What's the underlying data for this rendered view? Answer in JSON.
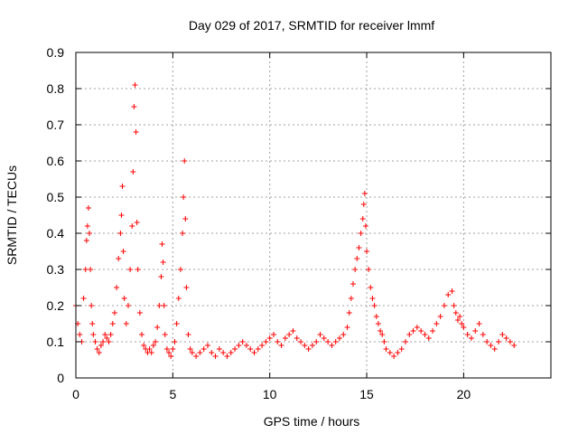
{
  "chart_data": {
    "type": "scatter",
    "title": "Day 029 of 2017, SRMTID for receiver lmmf",
    "xlabel": "GPS time / hours",
    "ylabel": "SRMTID / TECUs",
    "xlim": [
      0,
      24.5
    ],
    "ylim": [
      0,
      0.9
    ],
    "xticks": [
      0,
      5,
      10,
      15,
      20
    ],
    "xtick_labels": [
      "0",
      "5",
      "10",
      "15",
      "20"
    ],
    "yticks": [
      0,
      0.1,
      0.2,
      0.3,
      0.4,
      0.5,
      0.6,
      0.7,
      0.8,
      0.9
    ],
    "ytick_labels": [
      "0",
      "0.1",
      "0.2",
      "0.3",
      "0.4",
      "0.5",
      "0.6",
      "0.7",
      "0.8",
      "0.9"
    ],
    "grid": true,
    "marker": "plus",
    "color": "#ff0000",
    "series": [
      {
        "name": "SRMTID",
        "x": [
          0.0,
          0.1,
          0.2,
          0.3,
          0.4,
          0.5,
          0.55,
          0.6,
          0.65,
          0.7,
          0.75,
          0.8,
          0.85,
          0.9,
          1.0,
          1.1,
          1.2,
          1.3,
          1.4,
          1.5,
          1.6,
          1.7,
          1.8,
          1.9,
          2.0,
          2.1,
          2.2,
          2.3,
          2.35,
          2.4,
          2.45,
          2.5,
          2.6,
          2.7,
          2.8,
          2.9,
          2.95,
          3.0,
          3.05,
          3.1,
          3.15,
          3.2,
          3.3,
          3.4,
          3.5,
          3.6,
          3.7,
          3.8,
          3.9,
          4.0,
          4.1,
          4.2,
          4.3,
          4.4,
          4.45,
          4.5,
          4.55,
          4.6,
          4.7,
          4.8,
          4.9,
          5.0,
          5.1,
          5.2,
          5.3,
          5.4,
          5.5,
          5.55,
          5.6,
          5.65,
          5.7,
          5.8,
          5.9,
          6.0,
          6.2,
          6.4,
          6.6,
          6.8,
          7.0,
          7.2,
          7.4,
          7.6,
          7.8,
          8.0,
          8.2,
          8.4,
          8.6,
          8.8,
          9.0,
          9.2,
          9.4,
          9.6,
          9.8,
          10.0,
          10.2,
          10.4,
          10.6,
          10.8,
          11.0,
          11.2,
          11.4,
          11.6,
          11.8,
          12.0,
          12.2,
          12.4,
          12.6,
          12.8,
          13.0,
          13.2,
          13.4,
          13.6,
          13.8,
          14.0,
          14.1,
          14.2,
          14.3,
          14.4,
          14.5,
          14.6,
          14.7,
          14.8,
          14.85,
          14.9,
          14.95,
          15.0,
          15.1,
          15.2,
          15.3,
          15.4,
          15.5,
          15.6,
          15.7,
          15.8,
          15.9,
          16.0,
          16.2,
          16.4,
          16.6,
          16.8,
          17.0,
          17.2,
          17.4,
          17.6,
          17.8,
          18.0,
          18.2,
          18.4,
          18.6,
          18.8,
          19.0,
          19.2,
          19.4,
          19.5,
          19.6,
          19.7,
          19.8,
          19.9,
          20.0,
          20.2,
          20.4,
          20.6,
          20.8,
          21.0,
          21.2,
          21.4,
          21.6,
          21.8,
          22.0,
          22.2,
          22.4,
          22.6
        ],
        "y": [
          0.2,
          0.15,
          0.12,
          0.1,
          0.22,
          0.3,
          0.38,
          0.42,
          0.47,
          0.4,
          0.3,
          0.2,
          0.15,
          0.12,
          0.1,
          0.08,
          0.07,
          0.09,
          0.1,
          0.12,
          0.11,
          0.1,
          0.12,
          0.15,
          0.18,
          0.25,
          0.33,
          0.4,
          0.45,
          0.53,
          0.35,
          0.22,
          0.15,
          0.2,
          0.3,
          0.42,
          0.57,
          0.75,
          0.81,
          0.68,
          0.43,
          0.3,
          0.18,
          0.12,
          0.09,
          0.08,
          0.07,
          0.08,
          0.07,
          0.09,
          0.1,
          0.14,
          0.2,
          0.28,
          0.37,
          0.32,
          0.2,
          0.12,
          0.08,
          0.07,
          0.06,
          0.08,
          0.1,
          0.15,
          0.22,
          0.3,
          0.4,
          0.5,
          0.6,
          0.44,
          0.25,
          0.12,
          0.08,
          0.07,
          0.06,
          0.07,
          0.08,
          0.09,
          0.07,
          0.06,
          0.08,
          0.07,
          0.06,
          0.07,
          0.08,
          0.09,
          0.1,
          0.09,
          0.08,
          0.07,
          0.08,
          0.09,
          0.1,
          0.11,
          0.12,
          0.1,
          0.09,
          0.11,
          0.12,
          0.13,
          0.11,
          0.1,
          0.09,
          0.08,
          0.09,
          0.1,
          0.12,
          0.11,
          0.1,
          0.09,
          0.1,
          0.11,
          0.12,
          0.14,
          0.18,
          0.22,
          0.26,
          0.3,
          0.33,
          0.36,
          0.4,
          0.44,
          0.48,
          0.51,
          0.42,
          0.35,
          0.3,
          0.25,
          0.22,
          0.2,
          0.17,
          0.15,
          0.13,
          0.12,
          0.1,
          0.08,
          0.07,
          0.06,
          0.07,
          0.08,
          0.1,
          0.12,
          0.13,
          0.14,
          0.13,
          0.12,
          0.11,
          0.13,
          0.15,
          0.17,
          0.2,
          0.23,
          0.24,
          0.2,
          0.18,
          0.16,
          0.17,
          0.15,
          0.14,
          0.12,
          0.11,
          0.13,
          0.15,
          0.12,
          0.1,
          0.09,
          0.08,
          0.1,
          0.12,
          0.11,
          0.1,
          0.09
        ]
      }
    ]
  }
}
